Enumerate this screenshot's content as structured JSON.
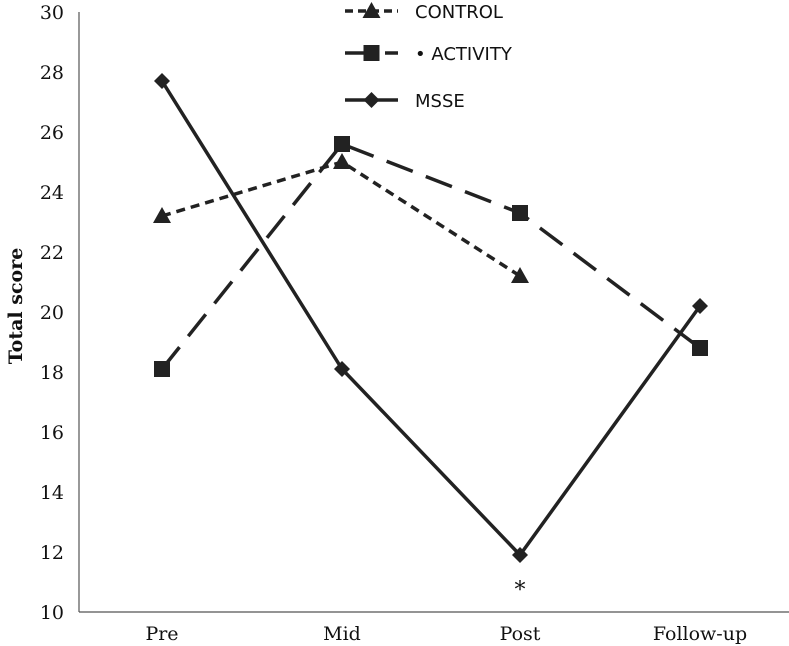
{
  "chart_data": {
    "type": "line",
    "title": "",
    "xlabel": "",
    "ylabel": "Total score",
    "categories": [
      "Pre",
      "Mid",
      "Post",
      "Follow-up"
    ],
    "ylim": [
      10,
      30
    ],
    "yticks": [
      10,
      12,
      14,
      16,
      18,
      20,
      22,
      24,
      26,
      28,
      30
    ],
    "grid": false,
    "legend_position": "top-center",
    "series": [
      {
        "name": "CONTROL",
        "values": [
          23.2,
          25.0,
          21.2,
          null
        ],
        "line_style": "short-dash",
        "marker": "triangle",
        "legend_label": "CONTROL"
      },
      {
        "name": "ACTIVITY",
        "values": [
          18.1,
          25.6,
          23.3,
          18.8
        ],
        "line_style": "long-dash",
        "marker": "square",
        "legend_label": "• ACTIVITY"
      },
      {
        "name": "MSSE",
        "values": [
          27.7,
          18.1,
          11.9,
          20.2
        ],
        "line_style": "solid",
        "marker": "diamond",
        "legend_label": "MSSE"
      }
    ],
    "annotations": [
      {
        "text": "*",
        "category": "Post",
        "y": 10.9
      }
    ],
    "colors": {
      "line": "#222222",
      "axis": "#555555"
    }
  }
}
